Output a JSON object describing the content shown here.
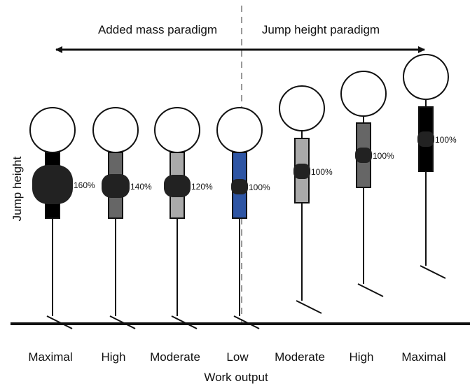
{
  "header": {
    "left_paradigm": "Added mass paradigm",
    "right_paradigm": "Jump height paradigm"
  },
  "axes": {
    "y_label": "Jump height",
    "x_label": "Work output"
  },
  "figures": [
    {
      "mass_label": "160%",
      "category": "Maximal"
    },
    {
      "mass_label": "140%",
      "category": "High"
    },
    {
      "mass_label": "120%",
      "category": "Moderate"
    },
    {
      "mass_label": "100%",
      "category": "Low"
    },
    {
      "mass_label": "100%",
      "category": "Moderate"
    },
    {
      "mass_label": "100%",
      "category": "High"
    },
    {
      "mass_label": "100%",
      "category": "Maximal"
    }
  ]
}
